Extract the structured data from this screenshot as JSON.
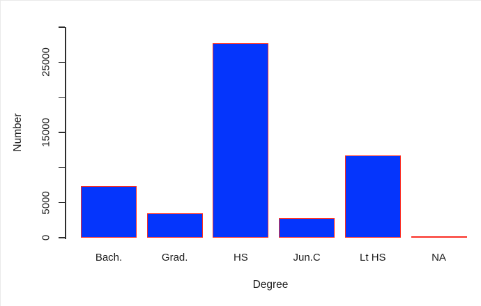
{
  "chart_data": {
    "type": "bar",
    "title": "",
    "xlabel": "Degree",
    "ylabel": "Number",
    "categories": [
      "Bach.",
      "Grad.",
      "HS",
      "Jun.C",
      "Lt HS",
      "NA"
    ],
    "values": [
      7400,
      3500,
      27700,
      2800,
      11700,
      0
    ],
    "ylim": [
      0,
      30000
    ],
    "yticks": [
      0,
      5000,
      10000,
      15000,
      20000,
      25000,
      30000
    ],
    "ytick_labels": [
      "0",
      "5000",
      "",
      "15000",
      "",
      "25000",
      ""
    ],
    "grid": false,
    "bar_fill_color": "#0535fc",
    "bar_border_color": "#fa2d23",
    "axis_color": "#2e2e2e",
    "text_color": "#1c1c1c",
    "background_color": "#ffffff"
  }
}
